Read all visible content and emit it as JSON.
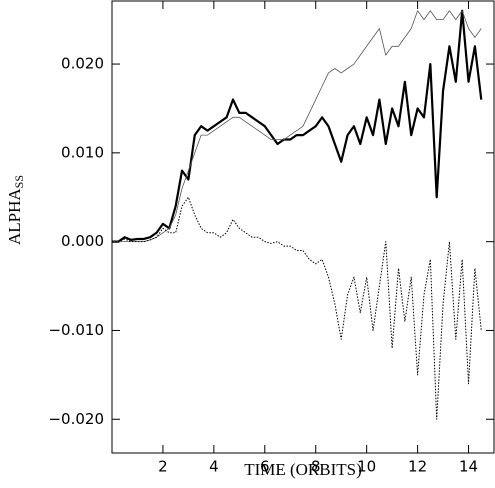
{
  "chart_data": {
    "type": "line",
    "xlabel": "TIME (ORBITS)",
    "ylabel": "ALPHA",
    "ylabel_subscript": "SS",
    "x": [
      0,
      0.25,
      0.5,
      0.75,
      1,
      1.25,
      1.5,
      1.75,
      2,
      2.25,
      2.5,
      2.75,
      3,
      3.25,
      3.5,
      3.75,
      4,
      4.25,
      4.5,
      4.75,
      5,
      5.25,
      5.5,
      5.75,
      6,
      6.25,
      6.5,
      6.75,
      7,
      7.25,
      7.5,
      7.75,
      8,
      8.25,
      8.5,
      8.75,
      9,
      9.25,
      9.5,
      9.75,
      10,
      10.25,
      10.5,
      10.75,
      11,
      11.25,
      11.5,
      11.75,
      12,
      12.25,
      12.5,
      12.75,
      13,
      13.25,
      13.5,
      13.75,
      14,
      14.25,
      14.5
    ],
    "series": [
      {
        "color": "#000000",
        "line_style": "solid",
        "line_width": 2.2,
        "values": [
          0,
          0,
          0.0005,
          0.0002,
          0.0003,
          0.0003,
          0.0005,
          0.001,
          0.002,
          0.0015,
          0.004,
          0.008,
          0.007,
          0.012,
          0.013,
          0.0125,
          0.013,
          0.0135,
          0.014,
          0.016,
          0.0145,
          0.0145,
          0.014,
          0.0135,
          0.013,
          0.012,
          0.011,
          0.0115,
          0.0115,
          0.012,
          0.012,
          0.0125,
          0.013,
          0.014,
          0.013,
          0.011,
          0.009,
          0.012,
          0.013,
          0.011,
          0.014,
          0.012,
          0.016,
          0.011,
          0.015,
          0.013,
          0.018,
          0.012,
          0.015,
          0.014,
          0.02,
          0.005,
          0.017,
          0.022,
          0.018,
          0.026,
          0.018,
          0.022,
          0.016
        ]
      },
      {
        "color": "#555555",
        "line_style": "solid",
        "line_width": 0.8,
        "values": [
          0,
          0,
          0,
          0,
          0,
          0,
          0.0002,
          0.0005,
          0.001,
          0.0015,
          0.003,
          0.006,
          0.008,
          0.01,
          0.012,
          0.012,
          0.0125,
          0.013,
          0.0135,
          0.014,
          0.014,
          0.0135,
          0.013,
          0.0125,
          0.012,
          0.0115,
          0.0115,
          0.0115,
          0.012,
          0.0125,
          0.013,
          0.0145,
          0.016,
          0.0175,
          0.019,
          0.0195,
          0.019,
          0.0195,
          0.02,
          0.021,
          0.022,
          0.023,
          0.024,
          0.021,
          0.022,
          0.022,
          0.023,
          0.024,
          0.026,
          0.025,
          0.026,
          0.025,
          0.025,
          0.026,
          0.025,
          0.026,
          0.024,
          0.023,
          0.024
        ]
      },
      {
        "color": "#000000",
        "line_style": "dotted",
        "line_width": 1,
        "values": [
          0,
          0,
          0.0003,
          0,
          0,
          0,
          0.0002,
          0.0005,
          0.0015,
          0.001,
          0.001,
          0.004,
          0.005,
          0.003,
          0.0015,
          0.001,
          0.001,
          0.0005,
          0.001,
          0.0025,
          0.0015,
          0.001,
          0.0005,
          0.0005,
          0,
          -0.0002,
          0,
          -0.0005,
          -0.0005,
          -0.001,
          -0.001,
          -0.002,
          -0.0025,
          -0.002,
          -0.004,
          -0.007,
          -0.011,
          -0.006,
          -0.004,
          -0.008,
          -0.004,
          -0.01,
          -0.005,
          0,
          -0.012,
          -0.003,
          -0.009,
          -0.004,
          -0.015,
          -0.006,
          -0.002,
          -0.02,
          -0.007,
          0,
          -0.011,
          -0.002,
          -0.016,
          -0.003,
          -0.01
        ]
      }
    ],
    "xlim": [
      0,
      15
    ],
    "xticks": [
      2,
      4,
      6,
      8,
      10,
      12,
      14
    ],
    "ylim": [
      -0.0238,
      0.0271
    ],
    "yticks": [
      {
        "value": -0.02,
        "label": "−0.020"
      },
      {
        "value": -0.01,
        "label": "−0.010"
      },
      {
        "value": 0,
        "label": "0.000"
      },
      {
        "value": 0.01,
        "label": "0.010"
      },
      {
        "value": 0.02,
        "label": "0.020"
      }
    ],
    "grid": false
  }
}
